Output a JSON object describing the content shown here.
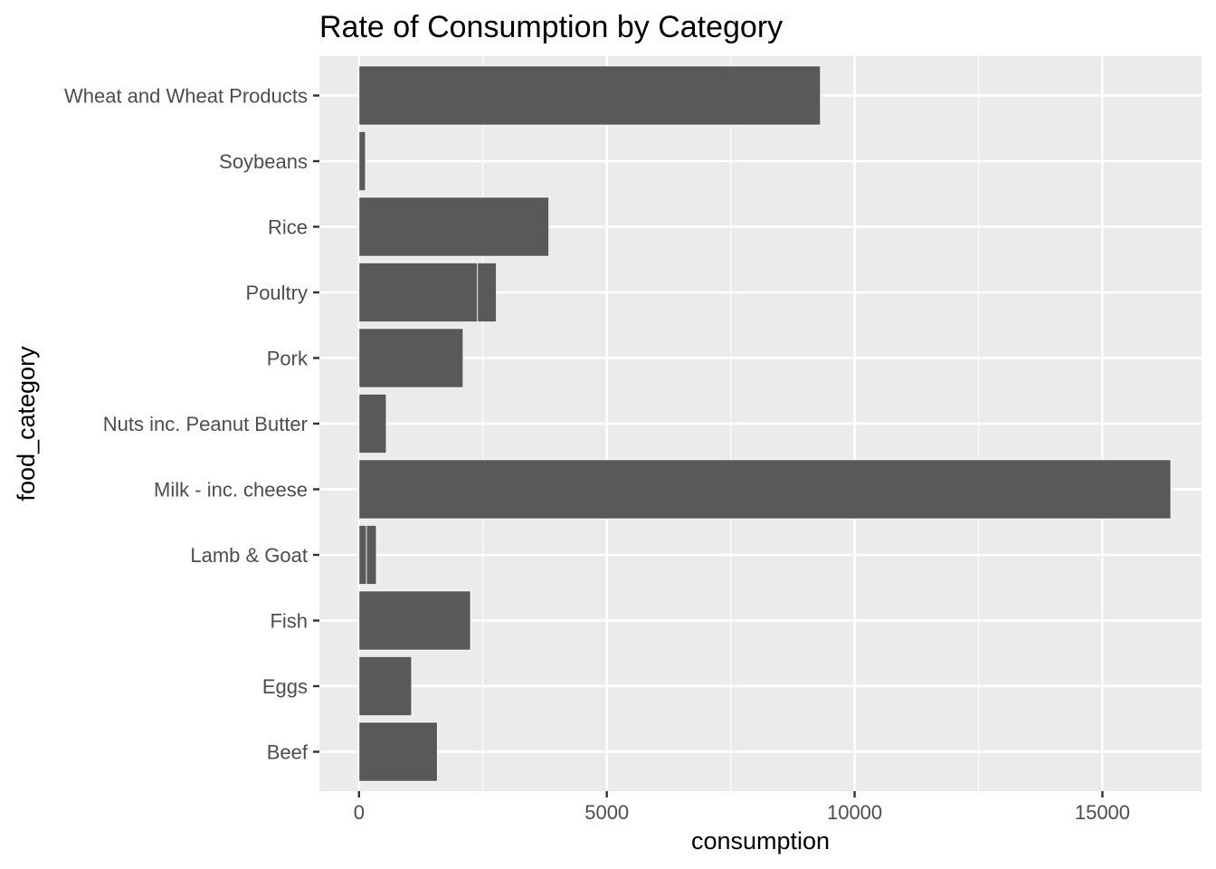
{
  "chart_data": {
    "type": "bar",
    "orientation": "horizontal",
    "stacked": true,
    "title": "Rate of Consumption by Category",
    "xlabel": "consumption",
    "ylabel": "food_category",
    "xlim": [
      -800,
      17000
    ],
    "x_ticks": [
      0,
      5000,
      10000,
      15000
    ],
    "x_tick_labels": [
      "0",
      "5000",
      "10000",
      "15000"
    ],
    "categories": [
      "Beef",
      "Eggs",
      "Fish",
      "Lamb & Goat",
      "Milk - inc. cheese",
      "Nuts inc. Peanut Butter",
      "Pork",
      "Poultry",
      "Rice",
      "Soybeans",
      "Wheat and Wheat Products"
    ],
    "segments": [
      [
        1580
      ],
      [
        1060
      ],
      [
        2250
      ],
      [
        150,
        200
      ],
      [
        16380
      ],
      [
        550
      ],
      [
        2100
      ],
      [
        2390,
        380
      ],
      [
        3830
      ],
      [
        130
      ],
      [
        9310
      ]
    ],
    "grid": true,
    "legend": "none",
    "colors": {
      "bar": "#595959",
      "panel": "#ebebeb",
      "grid": "#ffffff",
      "tick_text": "#4d4d4d",
      "tick_mark": "#333333",
      "title_text": "#000000"
    }
  }
}
